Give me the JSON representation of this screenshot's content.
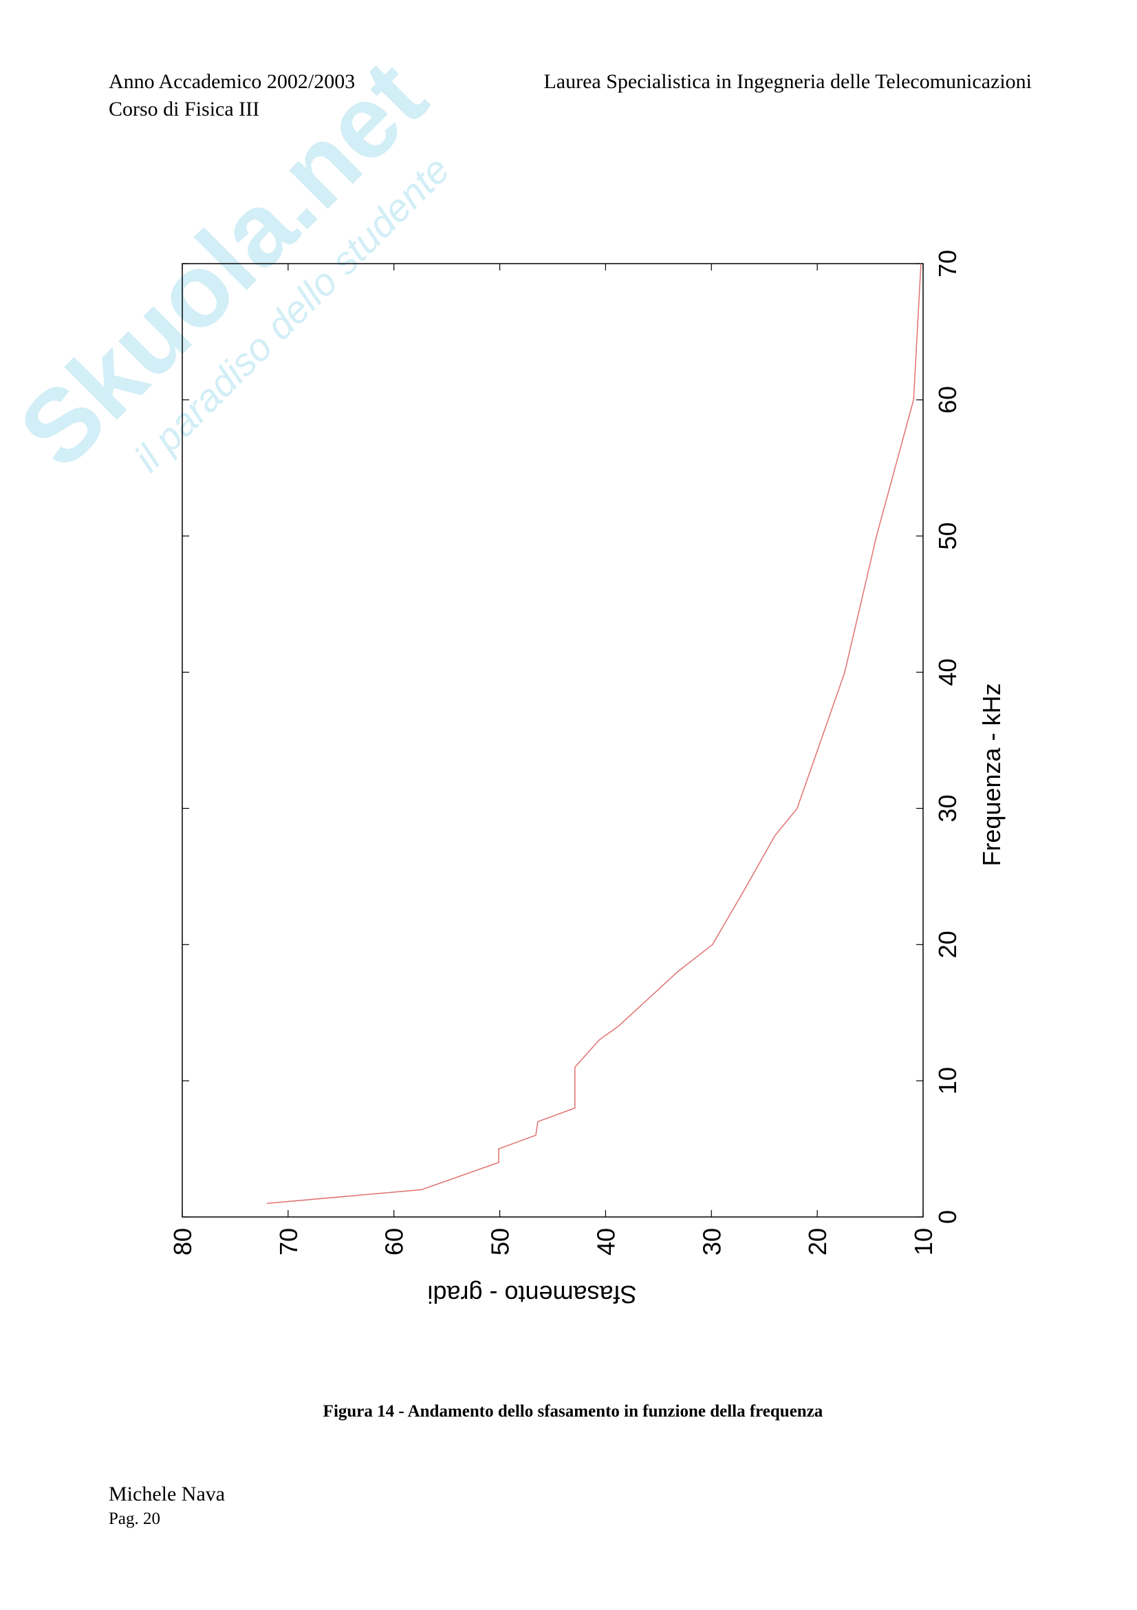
{
  "header": {
    "left_line1": "Anno Accademico 2002/2003",
    "left_line2": "Corso di Fisica III",
    "right": "Laurea Specialistica in Ingegneria delle Telecomunicazioni"
  },
  "watermark": {
    "brand": "Skuola.net",
    "tagline": "il paradiso dello studente"
  },
  "chart_data": {
    "type": "line",
    "x": [
      1,
      2,
      4,
      5,
      6,
      7,
      8,
      11,
      13,
      14,
      18,
      20,
      24,
      28,
      30,
      40,
      50,
      60,
      70
    ],
    "values": [
      72.0,
      57.4,
      50.1,
      50.1,
      46.6,
      46.4,
      42.9,
      42.9,
      40.6,
      38.8,
      33.2,
      29.9,
      26.9,
      24.0,
      21.9,
      17.4,
      14.4,
      10.9,
      10.2
    ],
    "color": "#e07070",
    "xlabel": "Frequenza - kHz",
    "ylabel": "Sfasamento - gradi",
    "xlim": [
      0,
      70
    ],
    "xticks": [
      0,
      10,
      20,
      30,
      40,
      50,
      60,
      70
    ],
    "ylim": [
      10,
      80
    ],
    "yticks": [
      80,
      70,
      60,
      50,
      40,
      30,
      20,
      10
    ]
  },
  "caption": "Figura 14 - Andamento dello sfasamento in funzione della frequenza",
  "footer": {
    "author": "Michele Nava",
    "page": "Pag. 20"
  }
}
